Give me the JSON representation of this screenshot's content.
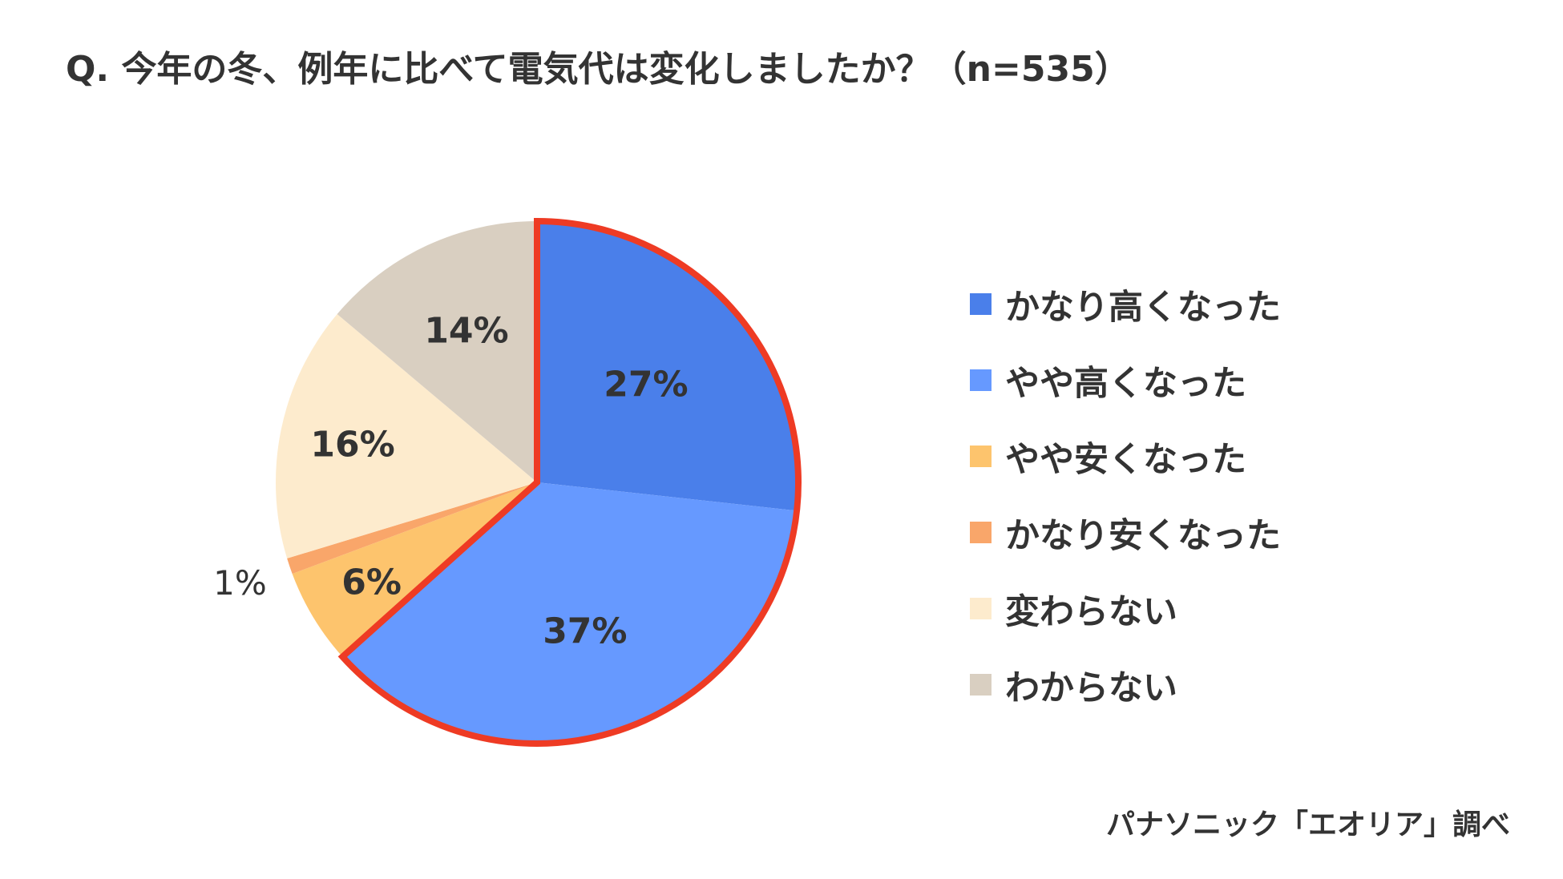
{
  "title": "Q. 今年の冬、例年に比べて電気代は変化しましたか？（n=535）",
  "source": "パナソニック「エオリア」調べ",
  "chart_data": {
    "type": "pie",
    "title": "Q. 今年の冬、例年に比べて電気代は変化しましたか？（n=535）",
    "n": 535,
    "start_angle_deg": 0,
    "direction": "clockwise",
    "legend_position": "right",
    "slices": [
      {
        "label": "かなり高くなった",
        "value": 27,
        "display": "27%",
        "color": "#4A7FEA",
        "highlighted": true
      },
      {
        "label": "やや高くなった",
        "value": 37,
        "display": "37%",
        "color": "#6699FF",
        "highlighted": true
      },
      {
        "label": "やや安くなった",
        "value": 6,
        "display": "6%",
        "color": "#FDC46D",
        "highlighted": false
      },
      {
        "label": "かなり安くなった",
        "value": 1,
        "display": "1%",
        "color": "#F9A66A",
        "highlighted": false
      },
      {
        "label": "変わらない",
        "value": 16,
        "display": "16%",
        "color": "#FDEBCD",
        "highlighted": false
      },
      {
        "label": "わからない",
        "value": 14,
        "display": "14%",
        "color": "#D9CFC1",
        "highlighted": false
      }
    ],
    "highlight_color": "#EE3B24"
  }
}
